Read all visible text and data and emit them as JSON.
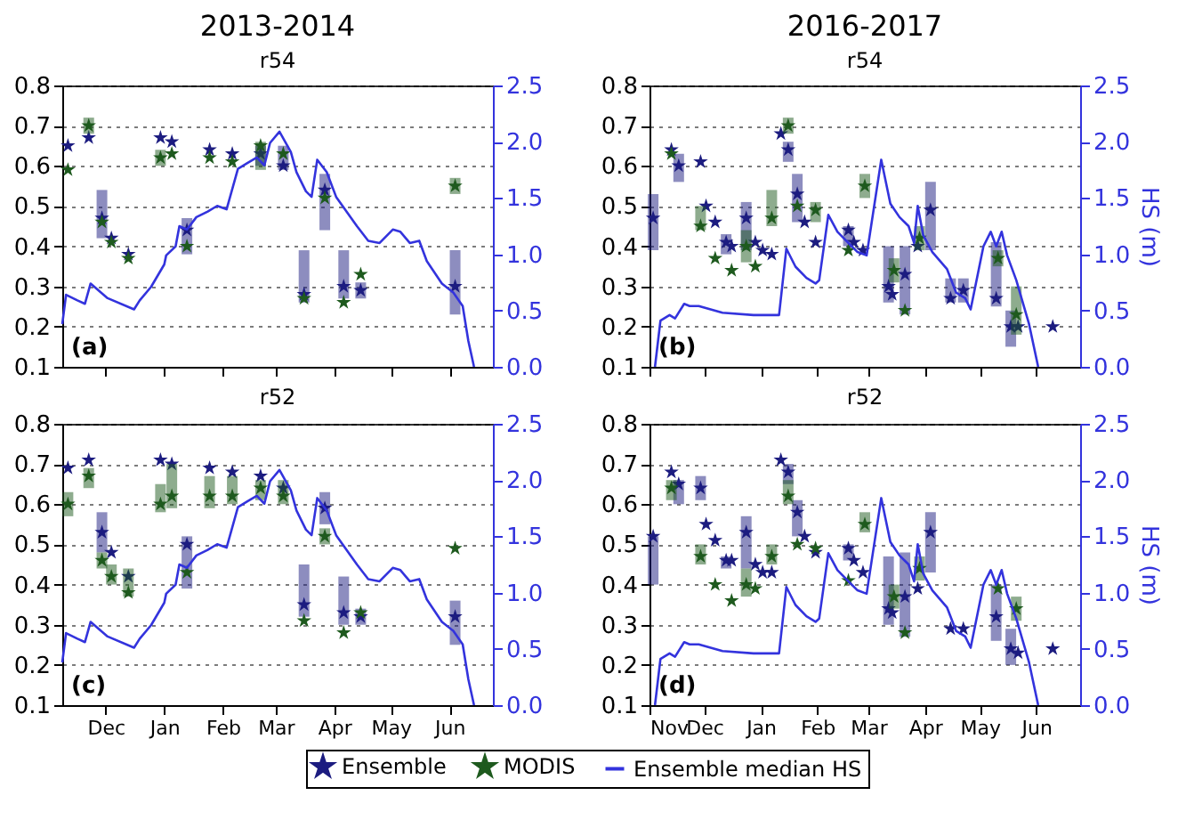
{
  "chart_data": [
    {
      "type": "scatter",
      "title": "2013-2014",
      "subtitle": "r54",
      "annotations": [
        "(a)"
      ],
      "xlim": [
        "2013-11-08",
        "2014-06-24"
      ],
      "xticks": [
        {
          "value": "2013-12-01",
          "label": "Dec"
        },
        {
          "value": "2014-01-01",
          "label": "Jan"
        },
        {
          "value": "2014-02-01",
          "label": "Feb"
        },
        {
          "value": "2014-03-01",
          "label": "Mar"
        },
        {
          "value": "2014-04-01",
          "label": "Apr"
        },
        {
          "value": "2014-05-01",
          "label": "May"
        },
        {
          "value": "2014-06-01",
          "label": "Jun"
        }
      ],
      "ylim": [
        0.1,
        0.8
      ],
      "yticks": [
        0.1,
        0.2,
        0.3,
        0.4,
        0.5,
        0.6,
        0.7,
        0.8
      ],
      "y2lim": [
        0,
        2.5
      ],
      "y2ticks": [
        {
          "value": 0,
          "label": "0.0"
        },
        0.5,
        {
          "value": 1,
          "label": "1.0"
        },
        1.5,
        {
          "value": 2,
          "label": "2.0"
        },
        2.5
      ],
      "grid": "y",
      "legend": "bottom",
      "tick_labels": "y",
      "series": [
        {
          "name": "Ensemble",
          "color": "#1c1c80",
          "marker": "star",
          "x": [
            "2013-11-11",
            "2013-11-22",
            "2013-11-29",
            "2013-12-04",
            "2013-12-13",
            "2013-12-30",
            "2014-01-05",
            "2014-01-13",
            "2014-01-25",
            "2014-02-06",
            "2014-02-21",
            "2014-03-05",
            "2014-03-16",
            "2014-03-27",
            "2014-04-06",
            "2014-04-15",
            "2014-06-04"
          ],
          "values": [
            0.65,
            0.67,
            0.47,
            0.42,
            0.38,
            0.67,
            0.66,
            0.44,
            0.64,
            0.63,
            0.63,
            0.6,
            0.28,
            0.54,
            0.3,
            0.29,
            0.3
          ],
          "errors": [
            null,
            null,
            [
              0.42,
              0.54
            ],
            null,
            null,
            null,
            null,
            [
              0.38,
              0.47
            ],
            null,
            null,
            [
              0.6,
              0.65
            ],
            [
              0.59,
              0.65
            ],
            [
              0.26,
              0.39
            ],
            [
              0.44,
              0.58
            ],
            [
              0.27,
              0.39
            ],
            [
              0.27,
              0.31
            ],
            [
              0.23,
              0.39
            ]
          ]
        },
        {
          "name": "MODIS",
          "color": "#1e5a1e",
          "marker": "star",
          "x": [
            "2013-11-11",
            "2013-11-22",
            "2013-11-29",
            "2013-12-04",
            "2013-12-13",
            "2013-12-30",
            "2014-01-05",
            "2014-01-13",
            "2014-01-25",
            "2014-02-06",
            "2014-02-21",
            "2014-03-05",
            "2014-03-16",
            "2014-03-27",
            "2014-04-06",
            "2014-04-15",
            "2014-06-04"
          ],
          "values": [
            0.59,
            0.7,
            0.46,
            0.41,
            0.37,
            0.62,
            0.63,
            0.4,
            0.62,
            0.61,
            0.65,
            0.63,
            0.27,
            0.52,
            0.26,
            0.33,
            0.55
          ],
          "errors": [
            null,
            [
              0.68,
              0.72
            ],
            null,
            null,
            null,
            [
              0.6,
              0.64
            ],
            null,
            null,
            null,
            null,
            [
              0.59,
              0.66
            ],
            null,
            null,
            null,
            null,
            null,
            [
              0.53,
              0.57
            ]
          ]
        },
        {
          "name": "Ensemble median HS",
          "type": "line",
          "axis": "y2",
          "color": "#3333dd",
          "line_style": "solid",
          "x": [
            "2013-11-08",
            "2013-11-10",
            "2013-11-16",
            "2013-11-20",
            "2013-11-23",
            "2013-12-02",
            "2013-12-16",
            "2013-12-19",
            "2013-12-25",
            "2014-01-01",
            "2014-01-02",
            "2014-01-07",
            "2014-01-09",
            "2014-01-13",
            "2014-01-18",
            "2014-01-24",
            "2014-01-29",
            "2014-02-03",
            "2014-02-09",
            "2014-02-14",
            "2014-02-19",
            "2014-02-23",
            "2014-02-26",
            "2014-03-03",
            "2014-03-09",
            "2014-03-12",
            "2014-03-17",
            "2014-03-20",
            "2014-03-23",
            "2014-03-28",
            "2014-04-02",
            "2014-04-13",
            "2014-04-19",
            "2014-04-25",
            "2014-05-02",
            "2014-05-06",
            "2014-05-11",
            "2014-05-16",
            "2014-05-20",
            "2014-05-28",
            "2014-06-03",
            "2014-06-08",
            "2014-06-11",
            "2014-06-14"
          ],
          "values": [
            0.38,
            0.64,
            0.59,
            0.56,
            0.74,
            0.61,
            0.51,
            0.59,
            0.71,
            0.91,
            0.99,
            1.07,
            1.25,
            1.22,
            1.33,
            1.38,
            1.43,
            1.4,
            1.76,
            1.81,
            1.86,
            1.79,
            1.99,
            2.09,
            1.91,
            1.73,
            1.56,
            1.51,
            1.84,
            1.73,
            1.51,
            1.25,
            1.12,
            1.1,
            1.22,
            1.2,
            1.1,
            1.12,
            0.94,
            0.74,
            0.66,
            0.54,
            0.23,
            0.0
          ]
        }
      ]
    },
    {
      "type": "scatter",
      "title": "2016-2017",
      "subtitle": "r54",
      "y2label": "HS (m)",
      "annotations": [
        "(b)"
      ],
      "xlim": [
        "2016-11-01",
        "2017-06-25"
      ],
      "xticks": [
        {
          "value": "2016-11-01",
          "label": "Nov"
        },
        {
          "value": "2016-12-01",
          "label": "Dec"
        },
        {
          "value": "2017-01-01",
          "label": "Jan"
        },
        {
          "value": "2017-02-01",
          "label": "Feb"
        },
        {
          "value": "2017-03-01",
          "label": "Mar"
        },
        {
          "value": "2017-04-01",
          "label": "Apr"
        },
        {
          "value": "2017-05-01",
          "label": "May"
        },
        {
          "value": "2017-06-01",
          "label": "Jun"
        }
      ],
      "ylim": [
        0.1,
        0.8
      ],
      "yticks": [
        0.1,
        0.2,
        0.3,
        0.4,
        0.5,
        0.6,
        0.7,
        0.8
      ],
      "y2lim": [
        0,
        2.5
      ],
      "y2ticks": [
        {
          "value": 0,
          "label": "0.0"
        },
        0.5,
        {
          "value": 1,
          "label": "1.0"
        },
        1.5,
        {
          "value": 2,
          "label": "2.0"
        },
        2.5
      ],
      "grid": "y",
      "legend": "bottom",
      "tick_labels": "y",
      "series": [
        {
          "name": "Ensemble",
          "color": "#1c1c80",
          "marker": "star",
          "x": [
            "2016-11-03",
            "2016-11-13",
            "2016-11-17",
            "2016-11-29",
            "2016-12-02",
            "2016-12-07",
            "2016-12-13",
            "2016-12-16",
            "2016-12-24",
            "2016-12-29",
            "2017-01-02",
            "2017-01-07",
            "2017-01-12",
            "2017-01-16",
            "2017-01-21",
            "2017-01-25",
            "2017-01-31",
            "2017-02-18",
            "2017-02-21",
            "2017-02-26",
            "2017-03-12",
            "2017-03-14",
            "2017-03-21",
            "2017-03-28",
            "2017-04-04",
            "2017-04-15",
            "2017-04-22",
            "2017-05-10",
            "2017-05-18",
            "2017-05-22",
            "2017-06-10"
          ],
          "values": [
            0.47,
            0.64,
            0.6,
            0.61,
            0.5,
            0.46,
            0.41,
            0.4,
            0.47,
            0.41,
            0.39,
            0.38,
            0.68,
            0.64,
            0.53,
            0.46,
            0.41,
            0.44,
            0.41,
            0.39,
            0.3,
            0.28,
            0.33,
            0.4,
            0.49,
            0.27,
            0.29,
            0.27,
            0.2,
            0.2,
            0.2
          ],
          "errors": [
            [
              0.39,
              0.53
            ],
            null,
            [
              0.56,
              0.63
            ],
            null,
            null,
            null,
            [
              0.38,
              0.43
            ],
            null,
            [
              0.39,
              0.51
            ],
            null,
            null,
            null,
            null,
            [
              0.61,
              0.66
            ],
            [
              0.46,
              0.58
            ],
            null,
            null,
            [
              0.4,
              0.45
            ],
            null,
            null,
            [
              0.26,
              0.4
            ],
            null,
            [
              0.23,
              0.4
            ],
            null,
            [
              0.39,
              0.56
            ],
            [
              0.26,
              0.32
            ],
            [
              0.26,
              0.32
            ],
            [
              0.25,
              0.41
            ],
            [
              0.15,
              0.24
            ],
            null,
            null
          ]
        },
        {
          "name": "MODIS",
          "color": "#1e5a1e",
          "marker": "star",
          "x": [
            "2016-11-13",
            "2016-11-29",
            "2016-12-07",
            "2016-12-16",
            "2016-12-24",
            "2016-12-29",
            "2017-01-07",
            "2017-01-16",
            "2017-01-21",
            "2017-01-31",
            "2017-02-18",
            "2017-02-27",
            "2017-03-15",
            "2017-03-21",
            "2017-03-29",
            "2017-05-11",
            "2017-05-21"
          ],
          "values": [
            0.63,
            0.45,
            0.37,
            0.34,
            0.4,
            0.35,
            0.47,
            0.7,
            0.5,
            0.49,
            0.39,
            0.55,
            0.34,
            0.24,
            0.42,
            0.37,
            0.23
          ],
          "errors": [
            null,
            [
              0.44,
              0.5
            ],
            null,
            null,
            [
              0.36,
              0.44
            ],
            null,
            [
              0.45,
              0.54
            ],
            [
              0.68,
              0.72
            ],
            null,
            [
              0.46,
              0.51
            ],
            null,
            [
              0.52,
              0.58
            ],
            [
              0.31,
              0.37
            ],
            null,
            [
              0.39,
              0.45
            ],
            [
              0.35,
              0.39
            ],
            [
              0.18,
              0.3
            ]
          ]
        },
        {
          "name": "Ensemble median HS",
          "type": "line",
          "axis": "y2",
          "color": "#3333dd",
          "line_style": "solid",
          "x": [
            "2016-11-04",
            "2016-11-07",
            "2016-11-12",
            "2016-11-15",
            "2016-11-20",
            "2016-11-23",
            "2016-11-28",
            "2016-12-11",
            "2016-12-28",
            "2017-01-11",
            "2017-01-15",
            "2017-01-20",
            "2017-01-26",
            "2017-01-31",
            "2017-02-02",
            "2017-02-07",
            "2017-02-12",
            "2017-02-18",
            "2017-02-23",
            "2017-02-28",
            "2017-03-08",
            "2017-03-13",
            "2017-03-18",
            "2017-03-23",
            "2017-03-26",
            "2017-03-28",
            "2017-03-31",
            "2017-04-05",
            "2017-04-13",
            "2017-04-18",
            "2017-04-23",
            "2017-04-26",
            "2017-05-03",
            "2017-05-07",
            "2017-05-10",
            "2017-05-13",
            "2017-05-16",
            "2017-05-21",
            "2017-05-28",
            "2017-06-02"
          ],
          "values": [
            0.0,
            0.41,
            0.46,
            0.43,
            0.56,
            0.54,
            0.54,
            0.48,
            0.46,
            0.46,
            1.05,
            0.89,
            0.79,
            0.74,
            0.77,
            1.35,
            1.2,
            1.1,
            1.02,
            0.99,
            1.84,
            1.45,
            1.33,
            1.25,
            1.1,
            1.43,
            1.17,
            1.02,
            0.87,
            0.66,
            0.61,
            0.51,
            1.07,
            1.2,
            1.07,
            1.2,
            0.99,
            0.77,
            0.38,
            0.0
          ]
        }
      ]
    },
    {
      "type": "scatter",
      "title": "r52",
      "annotations": [
        "(c)"
      ],
      "xlim": [
        "2013-11-08",
        "2014-06-24"
      ],
      "xticks": [
        {
          "value": "2013-12-01",
          "label": "Dec"
        },
        {
          "value": "2014-01-01",
          "label": "Jan"
        },
        {
          "value": "2014-02-01",
          "label": "Feb"
        },
        {
          "value": "2014-03-01",
          "label": "Mar"
        },
        {
          "value": "2014-04-01",
          "label": "Apr"
        },
        {
          "value": "2014-05-01",
          "label": "May"
        },
        {
          "value": "2014-06-01",
          "label": "Jun"
        }
      ],
      "ylim": [
        0.1,
        0.8
      ],
      "yticks": [
        0.1,
        0.2,
        0.3,
        0.4,
        0.5,
        0.6,
        0.7,
        0.8
      ],
      "y2lim": [
        0,
        2.5
      ],
      "y2ticks": [
        {
          "value": 0,
          "label": "0.0"
        },
        0.5,
        {
          "value": 1,
          "label": "1.0"
        },
        1.5,
        {
          "value": 2,
          "label": "2.0"
        },
        2.5
      ],
      "grid": "y",
      "legend": "bottom",
      "series": [
        {
          "name": "Ensemble",
          "color": "#1c1c80",
          "marker": "star",
          "x": [
            "2013-11-11",
            "2013-11-22",
            "2013-11-29",
            "2013-12-04",
            "2013-12-13",
            "2013-12-30",
            "2014-01-05",
            "2014-01-13",
            "2014-01-25",
            "2014-02-06",
            "2014-02-21",
            "2014-03-05",
            "2014-03-16",
            "2014-03-27",
            "2014-04-06",
            "2014-04-15",
            "2014-06-04"
          ],
          "values": [
            0.69,
            0.71,
            0.53,
            0.48,
            0.42,
            0.71,
            0.7,
            0.5,
            0.69,
            0.68,
            0.67,
            0.64,
            0.35,
            0.59,
            0.33,
            0.32,
            0.32
          ],
          "errors": [
            null,
            null,
            [
              0.48,
              0.58
            ],
            null,
            null,
            null,
            null,
            [
              0.39,
              0.52
            ],
            null,
            null,
            null,
            null,
            [
              0.32,
              0.45
            ],
            [
              0.55,
              0.63
            ],
            [
              0.3,
              0.42
            ],
            [
              0.3,
              0.34
            ],
            [
              0.25,
              0.36
            ]
          ]
        },
        {
          "name": "MODIS",
          "color": "#1e5a1e",
          "marker": "star",
          "x": [
            "2013-11-11",
            "2013-11-22",
            "2013-11-29",
            "2013-12-04",
            "2013-12-13",
            "2013-12-30",
            "2014-01-05",
            "2014-01-13",
            "2014-01-25",
            "2014-02-06",
            "2014-02-21",
            "2014-03-05",
            "2014-03-16",
            "2014-03-27",
            "2014-04-06",
            "2014-04-15",
            "2014-06-04"
          ],
          "values": [
            0.6,
            0.67,
            0.46,
            0.42,
            0.38,
            0.6,
            0.62,
            0.43,
            0.62,
            0.62,
            0.64,
            0.62,
            0.31,
            0.52,
            0.28,
            0.33,
            0.49
          ],
          "errors": [
            [
              0.57,
              0.63
            ],
            [
              0.64,
              0.69
            ],
            [
              0.44,
              0.48
            ],
            [
              0.4,
              0.45
            ],
            [
              0.37,
              0.44
            ],
            [
              0.58,
              0.65
            ],
            [
              0.59,
              0.7
            ],
            null,
            [
              0.59,
              0.67
            ],
            [
              0.6,
              0.67
            ],
            [
              0.61,
              0.66
            ],
            [
              0.6,
              0.66
            ],
            null,
            [
              0.5,
              0.54
            ],
            null,
            null,
            null
          ]
        },
        {
          "name": "Ensemble median HS",
          "type": "line",
          "axis": "y2",
          "color": "#3333dd",
          "line_style": "solid",
          "x": [
            "2013-11-08",
            "2013-11-10",
            "2013-11-16",
            "2013-11-20",
            "2013-11-23",
            "2013-12-02",
            "2013-12-16",
            "2013-12-19",
            "2013-12-25",
            "2014-01-01",
            "2014-01-02",
            "2014-01-07",
            "2014-01-09",
            "2014-01-13",
            "2014-01-18",
            "2014-01-24",
            "2014-01-29",
            "2014-02-03",
            "2014-02-09",
            "2014-02-14",
            "2014-02-19",
            "2014-02-23",
            "2014-02-26",
            "2014-03-03",
            "2014-03-09",
            "2014-03-12",
            "2014-03-17",
            "2014-03-20",
            "2014-03-23",
            "2014-03-28",
            "2014-04-02",
            "2014-04-13",
            "2014-04-19",
            "2014-04-25",
            "2014-05-02",
            "2014-05-06",
            "2014-05-11",
            "2014-05-16",
            "2014-05-20",
            "2014-05-28",
            "2014-06-03",
            "2014-06-08",
            "2014-06-11",
            "2014-06-14"
          ],
          "values": [
            0.38,
            0.64,
            0.59,
            0.56,
            0.74,
            0.61,
            0.51,
            0.59,
            0.71,
            0.91,
            0.99,
            1.07,
            1.25,
            1.22,
            1.33,
            1.38,
            1.43,
            1.4,
            1.76,
            1.81,
            1.86,
            1.79,
            1.99,
            2.09,
            1.91,
            1.73,
            1.56,
            1.51,
            1.84,
            1.73,
            1.51,
            1.25,
            1.12,
            1.1,
            1.22,
            1.2,
            1.1,
            1.12,
            0.94,
            0.74,
            0.66,
            0.54,
            0.23,
            0.0
          ]
        }
      ]
    },
    {
      "type": "scatter",
      "title": "r52",
      "y2label": "HS (m)",
      "annotations": [
        "(d)"
      ],
      "legend": "bottom",
      "xlim": [
        "2016-11-01",
        "2017-06-25"
      ],
      "xticks": [
        {
          "value": "2016-11-01",
          "label": "Nov"
        },
        {
          "value": "2016-12-01",
          "label": "Dec"
        },
        {
          "value": "2017-01-01",
          "label": "Jan"
        },
        {
          "value": "2017-02-01",
          "label": "Feb"
        },
        {
          "value": "2017-03-01",
          "label": "Mar"
        },
        {
          "value": "2017-04-01",
          "label": "Apr"
        },
        {
          "value": "2017-05-01",
          "label": "May"
        },
        {
          "value": "2017-06-01",
          "label": "Jun"
        }
      ],
      "ylim": [
        0.1,
        0.8
      ],
      "yticks": [
        0.1,
        0.2,
        0.3,
        0.4,
        0.5,
        0.6,
        0.7,
        0.8
      ],
      "y2lim": [
        0,
        2.5
      ],
      "y2ticks": [
        {
          "value": 0,
          "label": "0.0"
        },
        0.5,
        {
          "value": 1,
          "label": "1.0"
        },
        1.5,
        {
          "value": 2,
          "label": "2.0"
        },
        2.5
      ],
      "grid": "y",
      "series": [
        {
          "name": "Ensemble",
          "color": "#1c1c80",
          "marker": "star",
          "x": [
            "2016-11-03",
            "2016-11-13",
            "2016-11-17",
            "2016-11-29",
            "2016-12-02",
            "2016-12-07",
            "2016-12-13",
            "2016-12-16",
            "2016-12-24",
            "2016-12-29",
            "2017-01-02",
            "2017-01-07",
            "2017-01-12",
            "2017-01-16",
            "2017-01-21",
            "2017-01-25",
            "2017-01-31",
            "2017-02-18",
            "2017-02-21",
            "2017-02-26",
            "2017-03-12",
            "2017-03-14",
            "2017-03-21",
            "2017-03-28",
            "2017-04-04",
            "2017-04-15",
            "2017-04-22",
            "2017-05-10",
            "2017-05-18",
            "2017-05-22",
            "2017-06-10"
          ],
          "values": [
            0.52,
            0.68,
            0.65,
            0.64,
            0.55,
            0.51,
            0.46,
            0.46,
            0.53,
            0.45,
            0.43,
            0.43,
            0.71,
            0.68,
            0.58,
            0.52,
            0.48,
            0.49,
            0.46,
            0.43,
            0.34,
            0.33,
            0.37,
            0.39,
            0.53,
            0.29,
            0.29,
            0.32,
            0.24,
            0.23,
            0.24
          ],
          "errors": [
            [
              0.4,
              0.52
            ],
            null,
            [
              0.6,
              0.66
            ],
            [
              0.61,
              0.67
            ],
            null,
            null,
            [
              0.44,
              0.47
            ],
            null,
            [
              0.44,
              0.57
            ],
            null,
            null,
            null,
            null,
            [
              0.65,
              0.7
            ],
            [
              0.52,
              0.61
            ],
            null,
            null,
            [
              0.46,
              0.5
            ],
            null,
            null,
            [
              0.3,
              0.47
            ],
            null,
            [
              0.27,
              0.48
            ],
            null,
            [
              0.43,
              0.58
            ],
            null,
            null,
            [
              0.26,
              0.4
            ],
            [
              0.2,
              0.29
            ],
            null,
            null
          ]
        },
        {
          "name": "MODIS",
          "color": "#1e5a1e",
          "marker": "star",
          "x": [
            "2016-11-13",
            "2016-11-29",
            "2016-12-07",
            "2016-12-16",
            "2016-12-24",
            "2016-12-29",
            "2017-01-07",
            "2017-01-16",
            "2017-01-21",
            "2017-01-31",
            "2017-02-18",
            "2017-02-27",
            "2017-03-15",
            "2017-03-21",
            "2017-03-29",
            "2017-05-11",
            "2017-05-21"
          ],
          "values": [
            0.64,
            0.47,
            0.4,
            0.36,
            0.4,
            0.39,
            0.47,
            0.62,
            0.5,
            0.49,
            0.41,
            0.55,
            0.37,
            0.28,
            0.44,
            0.39,
            0.34
          ],
          "errors": [
            [
              0.61,
              0.66
            ],
            [
              0.45,
              0.5
            ],
            null,
            null,
            [
              0.37,
              0.44
            ],
            null,
            [
              0.45,
              0.5
            ],
            [
              0.6,
              0.66
            ],
            null,
            null,
            null,
            [
              0.53,
              0.58
            ],
            [
              0.34,
              0.4
            ],
            null,
            [
              0.41,
              0.47
            ],
            null,
            [
              0.31,
              0.37
            ]
          ]
        },
        {
          "name": "Ensemble median HS",
          "type": "line",
          "axis": "y2",
          "color": "#3333dd",
          "line_style": "solid",
          "x": [
            "2016-11-04",
            "2016-11-07",
            "2016-11-12",
            "2016-11-15",
            "2016-11-20",
            "2016-11-23",
            "2016-11-28",
            "2016-12-11",
            "2016-12-28",
            "2017-01-11",
            "2017-01-15",
            "2017-01-20",
            "2017-01-26",
            "2017-01-31",
            "2017-02-02",
            "2017-02-07",
            "2017-02-12",
            "2017-02-18",
            "2017-02-23",
            "2017-02-28",
            "2017-03-08",
            "2017-03-13",
            "2017-03-18",
            "2017-03-23",
            "2017-03-26",
            "2017-03-28",
            "2017-03-31",
            "2017-04-05",
            "2017-04-13",
            "2017-04-18",
            "2017-04-23",
            "2017-04-26",
            "2017-05-03",
            "2017-05-07",
            "2017-05-10",
            "2017-05-13",
            "2017-05-16",
            "2017-05-21",
            "2017-05-28",
            "2017-06-02"
          ],
          "values": [
            0.0,
            0.41,
            0.46,
            0.43,
            0.56,
            0.54,
            0.54,
            0.48,
            0.46,
            0.46,
            1.05,
            0.89,
            0.79,
            0.74,
            0.77,
            1.35,
            1.2,
            1.1,
            1.02,
            0.99,
            1.84,
            1.45,
            1.33,
            1.25,
            1.1,
            1.43,
            1.17,
            1.02,
            0.87,
            0.66,
            0.61,
            0.51,
            1.07,
            1.2,
            1.07,
            1.2,
            0.99,
            0.77,
            0.38,
            0.0
          ]
        }
      ]
    }
  ]
}
